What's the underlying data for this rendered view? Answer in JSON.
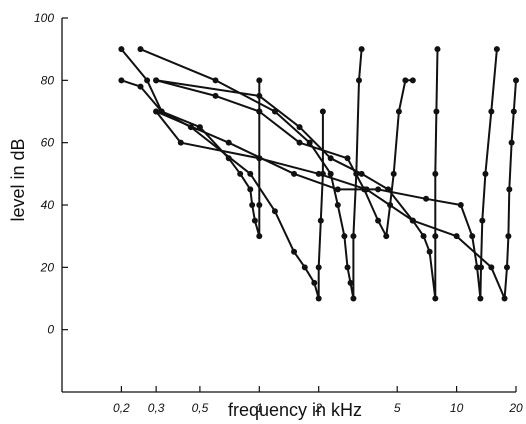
{
  "chart_data": {
    "type": "line",
    "title": "",
    "xlabel": "frequency in kHz",
    "ylabel": "level in dB",
    "x_scale": "log",
    "xlim": [
      0.1,
      20
    ],
    "ylim": [
      -20,
      100
    ],
    "x_ticks": [
      {
        "value": 0.2,
        "label": "0,2"
      },
      {
        "value": 0.3,
        "label": "0,3"
      },
      {
        "value": 0.5,
        "label": "0,5"
      },
      {
        "value": 1,
        "label": "1"
      },
      {
        "value": 2,
        "label": "2"
      },
      {
        "value": 5,
        "label": "5"
      },
      {
        "value": 10,
        "label": "10"
      },
      {
        "value": 20,
        "label": "20"
      }
    ],
    "y_ticks": [
      0,
      20,
      40,
      60,
      80,
      100
    ],
    "grid": false,
    "series": [
      {
        "x": [
          0.2,
          0.25,
          0.32,
          0.5,
          0.7,
          0.8,
          0.9,
          0.92,
          0.95,
          1.0,
          1.0,
          1.0,
          1.0,
          1.0
        ],
        "y": [
          80,
          78,
          70,
          65,
          55,
          50,
          45,
          40,
          35,
          30,
          40,
          55,
          70,
          80
        ]
      },
      {
        "x": [
          0.2,
          0.27,
          0.32,
          0.45,
          0.9,
          1.2,
          1.5,
          1.7,
          1.9,
          2.0,
          2.0,
          2.05,
          2.1,
          2.1
        ],
        "y": [
          90,
          80,
          70,
          65,
          50,
          38,
          25,
          20,
          15,
          10,
          20,
          35,
          50,
          70
        ]
      },
      {
        "x": [
          0.25,
          0.6,
          1.2,
          1.8,
          2.3,
          2.5,
          2.7,
          2.8,
          2.9,
          3.0,
          3.0,
          3.1,
          3.2,
          3.3
        ],
        "y": [
          90,
          80,
          70,
          60,
          50,
          40,
          30,
          20,
          15,
          10,
          30,
          50,
          80,
          90
        ]
      },
      {
        "x": [
          0.3,
          0.6,
          1.0,
          1.6,
          2.8,
          3.4,
          4.0,
          4.4,
          4.6,
          4.8,
          5.1,
          5.5,
          6.0
        ],
        "y": [
          80,
          75,
          70,
          60,
          55,
          45,
          35,
          30,
          40,
          50,
          70,
          80,
          80
        ]
      },
      {
        "x": [
          0.3,
          1.0,
          1.6,
          2.3,
          3.3,
          4.5,
          6.0,
          6.8,
          7.3,
          7.8,
          7.8,
          7.8,
          7.9,
          8.0
        ],
        "y": [
          80,
          75,
          65,
          55,
          50,
          45,
          35,
          30,
          25,
          10,
          30,
          50,
          70,
          90
        ]
      },
      {
        "x": [
          0.3,
          0.7,
          1.5,
          2.5,
          4.0,
          7.0,
          10.5,
          12.0,
          12.7,
          13.2,
          13.3,
          13.5,
          14.0,
          15.0,
          16.0
        ],
        "y": [
          70,
          60,
          50,
          45,
          45,
          42,
          40,
          30,
          20,
          10,
          20,
          35,
          50,
          70,
          90
        ]
      },
      {
        "x": [
          0.3,
          0.4,
          1.0,
          2.0,
          3.5,
          6.0,
          10.0,
          15.0,
          17.5,
          18.0,
          18.3,
          18.5,
          19.0,
          19.5,
          20.0
        ],
        "y": [
          70,
          60,
          55,
          50,
          45,
          35,
          30,
          20,
          10,
          20,
          30,
          45,
          60,
          70,
          80
        ]
      }
    ]
  }
}
